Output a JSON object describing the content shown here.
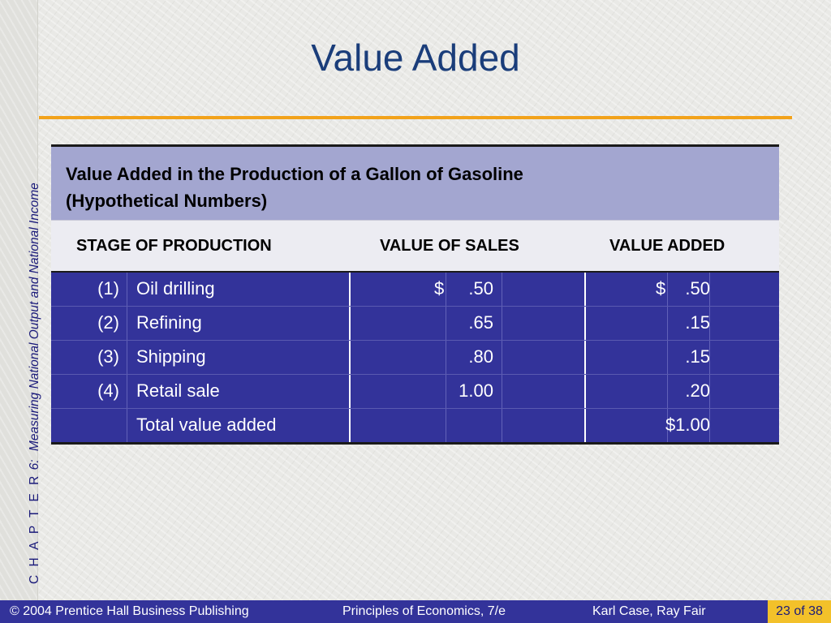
{
  "slide": {
    "title": "Value Added",
    "chapter": {
      "label": "C H A P T E R",
      "number": "6:",
      "subtitle": "Measuring National Output and National Income"
    }
  },
  "table": {
    "caption_line1": "Value Added in the Production of a Gallon of Gasoline",
    "caption_line2": "(Hypothetical Numbers)",
    "headers": [
      "STAGE OF PRODUCTION",
      "VALUE OF SALES",
      "VALUE ADDED"
    ],
    "rows": [
      {
        "num": "(1)",
        "label": "Oil drilling",
        "sales_symbol": "$",
        "sales": ".50",
        "added_symbol": "$",
        "added": ".50"
      },
      {
        "num": "(2)",
        "label": "Refining",
        "sales_symbol": "",
        "sales": ".65",
        "added_symbol": "",
        "added": ".15"
      },
      {
        "num": "(3)",
        "label": "Shipping",
        "sales_symbol": "",
        "sales": ".80",
        "added_symbol": "",
        "added": ".15"
      },
      {
        "num": "(4)",
        "label": "Retail sale",
        "sales_symbol": "",
        "sales": "1.00",
        "added_symbol": "",
        "added": ".20"
      },
      {
        "num": "",
        "label": "Total value added",
        "sales_symbol": "",
        "sales": "",
        "added_symbol": "",
        "added": "$1.00"
      }
    ]
  },
  "footer": {
    "copyright": "© 2004 Prentice Hall Business Publishing",
    "book": "Principles of Economics, 7/e",
    "authors": "Karl Case, Ray Fair",
    "page": "23 of 38"
  },
  "colors": {
    "title": "#1a3d7a",
    "accent_rule": "#f2a21a",
    "caption_bg": "#a3a6d0",
    "table_body_bg": "#33339a",
    "footer_bg": "#33339a",
    "page_badge_bg": "#f3c12a"
  }
}
